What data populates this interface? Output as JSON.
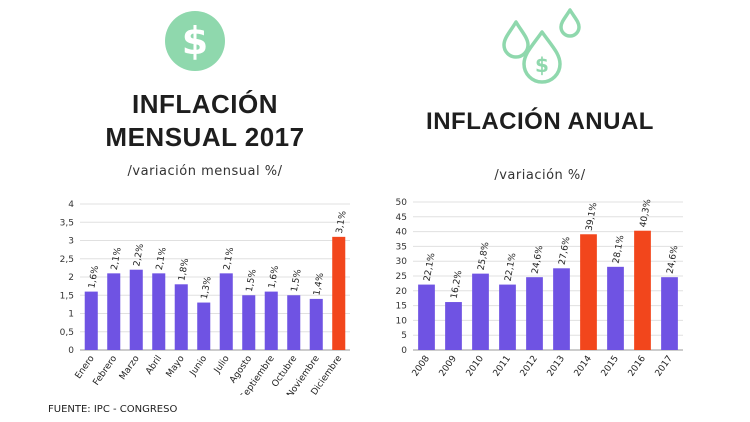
{
  "left": {
    "title_line1": "INFLACIÓN",
    "title_line2": "MENSUAL 2017",
    "subtitle": "/variación mensual %/"
  },
  "right": {
    "title": "INFLACIÓN ANUAL",
    "subtitle": "/variación %/"
  },
  "source": "FUENTE: IPC - CONGRESO",
  "icons": {
    "left": "dollar-circle-icon",
    "right": "money-drops-icon"
  },
  "colors": {
    "bar": "#6f53e3",
    "highlight": "#f2461c",
    "icon": "#7fd3a2",
    "grid": "#e0e0e0"
  },
  "chart_data": [
    {
      "type": "bar",
      "title": "INFLACIÓN MENSUAL 2017",
      "subtitle": "/variación mensual %/",
      "categories": [
        "Enero",
        "Febrero",
        "Marzo",
        "Abril",
        "Mayo",
        "Junio",
        "Julio",
        "Agosto",
        "Septiembre",
        "Octubre",
        "Noviembre",
        "Diciembre"
      ],
      "values": [
        1.6,
        2.1,
        2.2,
        2.1,
        1.8,
        1.3,
        2.1,
        1.5,
        1.6,
        1.5,
        1.4,
        3.1
      ],
      "labels": [
        "1,6%",
        "2,1%",
        "2,2%",
        "2,1%",
        "1,8%",
        "1,3%",
        "2,1%",
        "1,5%",
        "1,6%",
        "1,5%",
        "1,4%",
        "3,1%"
      ],
      "highlight": [
        11
      ],
      "yticks": [
        "0",
        "0,5",
        "1",
        "1,5",
        "2",
        "2,5",
        "3",
        "3,5",
        "4"
      ],
      "ylim": [
        0,
        4
      ],
      "grid": true
    },
    {
      "type": "bar",
      "title": "INFLACIÓN ANUAL",
      "subtitle": "/variación %/",
      "categories": [
        "2008",
        "2009",
        "2010",
        "2011",
        "2012",
        "2013",
        "2014",
        "2015",
        "2016",
        "2017"
      ],
      "values": [
        22.1,
        16.2,
        25.8,
        22.1,
        24.6,
        27.6,
        39.1,
        28.1,
        40.3,
        24.6
      ],
      "labels": [
        "22,1%",
        "16,2%",
        "25,8%",
        "22,1%",
        "24,6%",
        "27,6%",
        "39,1%",
        "28,1%",
        "40,3%",
        "24,6%"
      ],
      "highlight": [
        6,
        8
      ],
      "yticks": [
        "0",
        "5",
        "10",
        "15",
        "20",
        "25",
        "30",
        "35",
        "40",
        "45",
        "50"
      ],
      "ylim": [
        0,
        50
      ],
      "grid": true
    }
  ]
}
